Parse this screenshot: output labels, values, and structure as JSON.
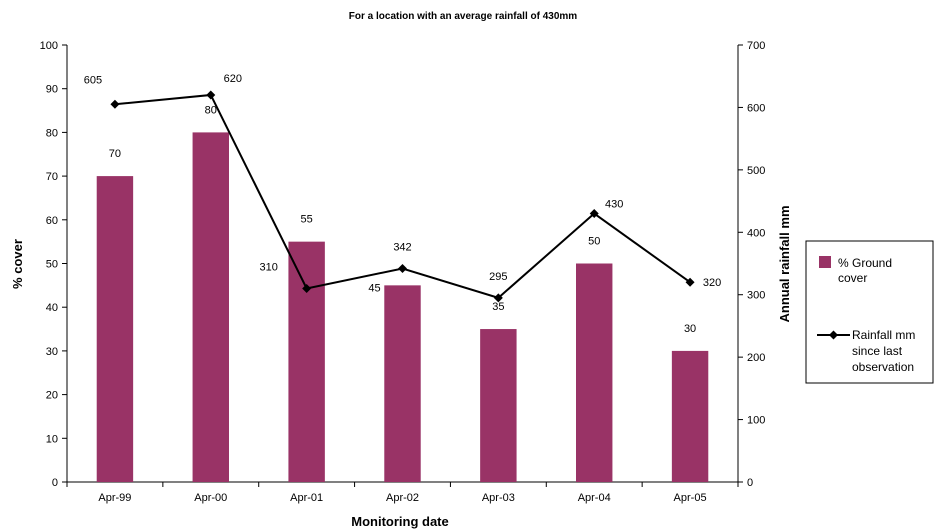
{
  "chart_data": {
    "type": "bar",
    "title": "For a location with an average rainfall of 430mm",
    "xlabel": "Monitoring date",
    "ylabel": "% cover",
    "y2label": "Annual rainfall mm",
    "categories": [
      "Apr-99",
      "Apr-00",
      "Apr-01",
      "Apr-02",
      "Apr-03",
      "Apr-04",
      "Apr-05"
    ],
    "ylim": [
      0,
      100
    ],
    "y2lim": [
      0,
      700
    ],
    "yticks": [
      0,
      10,
      20,
      30,
      40,
      50,
      60,
      70,
      80,
      90,
      100
    ],
    "y2ticks": [
      0,
      100,
      200,
      300,
      400,
      500,
      600,
      700
    ],
    "grid": false,
    "legend_position": "right",
    "series": [
      {
        "name": "% Ground cover",
        "type": "bar",
        "axis": "left",
        "color": "#993366",
        "values": [
          70,
          80,
          55,
          45,
          35,
          50,
          30
        ],
        "labels": [
          "70",
          "80",
          "55",
          "45",
          "35",
          "50",
          "30"
        ]
      },
      {
        "name": "Rainfall mm since last observation",
        "type": "line",
        "axis": "right",
        "color": "#000000",
        "marker": "diamond",
        "values": [
          605,
          620,
          310,
          342,
          295,
          430,
          320
        ],
        "labels": [
          "605",
          "620",
          "310",
          "342",
          "295",
          "430",
          "320"
        ]
      }
    ],
    "legend": {
      "bar_lines": [
        "% Ground",
        "cover"
      ],
      "line_lines": [
        "Rainfall mm",
        "since last",
        "observation"
      ]
    }
  }
}
